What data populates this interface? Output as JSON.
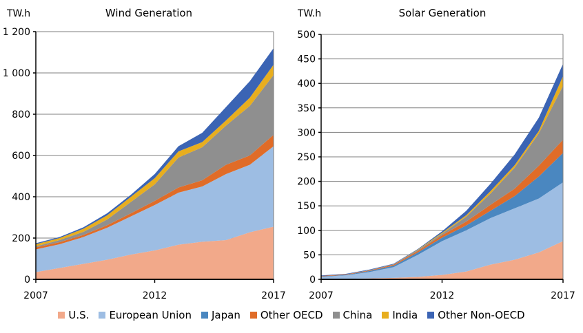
{
  "chart_data": [
    {
      "type": "area",
      "stacked": true,
      "title": "Wind Generation",
      "ylabel": "TW.h",
      "x": [
        2007,
        2008,
        2009,
        2010,
        2011,
        2012,
        2013,
        2014,
        2015,
        2016,
        2017
      ],
      "xticks": [
        "2007",
        "2012",
        "2017"
      ],
      "ylim": [
        0,
        1200
      ],
      "yticks": [
        0,
        200,
        400,
        600,
        800,
        1000,
        1200
      ],
      "ytick_labels": [
        "0",
        "200",
        "400",
        "600",
        "800",
        "1 000",
        "1 200"
      ],
      "grid": true,
      "series": [
        {
          "name": "U.S.",
          "values": [
            35,
            55,
            75,
            95,
            120,
            140,
            168,
            182,
            190,
            228,
            255
          ]
        },
        {
          "name": "European Union",
          "values": [
            110,
            115,
            130,
            155,
            185,
            220,
            252,
            268,
            320,
            327,
            390
          ]
        },
        {
          "name": "Japan",
          "values": [
            0,
            0,
            0,
            0,
            0,
            0,
            0,
            0,
            0,
            0,
            0
          ]
        },
        {
          "name": "Other OECD",
          "values": [
            10,
            10,
            10,
            12,
            15,
            20,
            25,
            30,
            45,
            45,
            55
          ]
        },
        {
          "name": "China",
          "values": [
            5,
            10,
            15,
            28,
            55,
            80,
            145,
            160,
            190,
            240,
            290
          ]
        },
        {
          "name": "India",
          "values": [
            10,
            10,
            15,
            20,
            25,
            30,
            30,
            25,
            25,
            40,
            50
          ]
        },
        {
          "name": "Other Non-OECD",
          "values": [
            5,
            5,
            7,
            10,
            10,
            20,
            25,
            45,
            65,
            80,
            80
          ]
        }
      ]
    },
    {
      "type": "area",
      "stacked": true,
      "title": "Solar Generation",
      "ylabel": "TW.h",
      "x": [
        2007,
        2008,
        2009,
        2010,
        2011,
        2012,
        2013,
        2014,
        2015,
        2016,
        2017
      ],
      "xticks": [
        "2007",
        "2012",
        "2017"
      ],
      "ylim": [
        0,
        500
      ],
      "yticks": [
        0,
        50,
        100,
        150,
        200,
        250,
        300,
        350,
        400,
        450,
        500
      ],
      "ytick_labels": [
        "0",
        "50",
        "100",
        "150",
        "200",
        "250",
        "300",
        "350",
        "400",
        "450",
        "500"
      ],
      "grid": true,
      "series": [
        {
          "name": "U.S.",
          "values": [
            1,
            1,
            2,
            3,
            5,
            9,
            16,
            30,
            40,
            55,
            78
          ]
        },
        {
          "name": "European Union",
          "values": [
            4,
            7,
            13,
            22,
            45,
            69,
            84,
            95,
            105,
            110,
            120
          ]
        },
        {
          "name": "Japan",
          "values": [
            1,
            1,
            2,
            3,
            5,
            7,
            10,
            15,
            25,
            45,
            60
          ]
        },
        {
          "name": "Other OECD",
          "values": [
            1,
            1,
            1,
            2,
            3,
            5,
            8,
            12,
            15,
            22,
            27
          ]
        },
        {
          "name": "China",
          "values": [
            0,
            0,
            1,
            1,
            2,
            3,
            10,
            23,
            43,
            66,
            110
          ]
        },
        {
          "name": "India",
          "values": [
            0,
            0,
            0,
            0,
            1,
            2,
            3,
            5,
            5,
            5,
            20
          ]
        },
        {
          "name": "Other Non-OECD",
          "values": [
            1,
            1,
            1,
            1,
            1,
            3,
            9,
            15,
            22,
            27,
            25
          ]
        }
      ]
    }
  ],
  "legend": [
    {
      "label": "U.S.",
      "color": "#f2a98a"
    },
    {
      "label": "European Union",
      "color": "#9dbde3"
    },
    {
      "label": "Japan",
      "color": "#4a87c0"
    },
    {
      "label": "Other OECD",
      "color": "#e06c28"
    },
    {
      "label": "China",
      "color": "#8f8f8f"
    },
    {
      "label": "India",
      "color": "#e8ae1e"
    },
    {
      "label": "Other Non-OECD",
      "color": "#3b64b4"
    }
  ]
}
